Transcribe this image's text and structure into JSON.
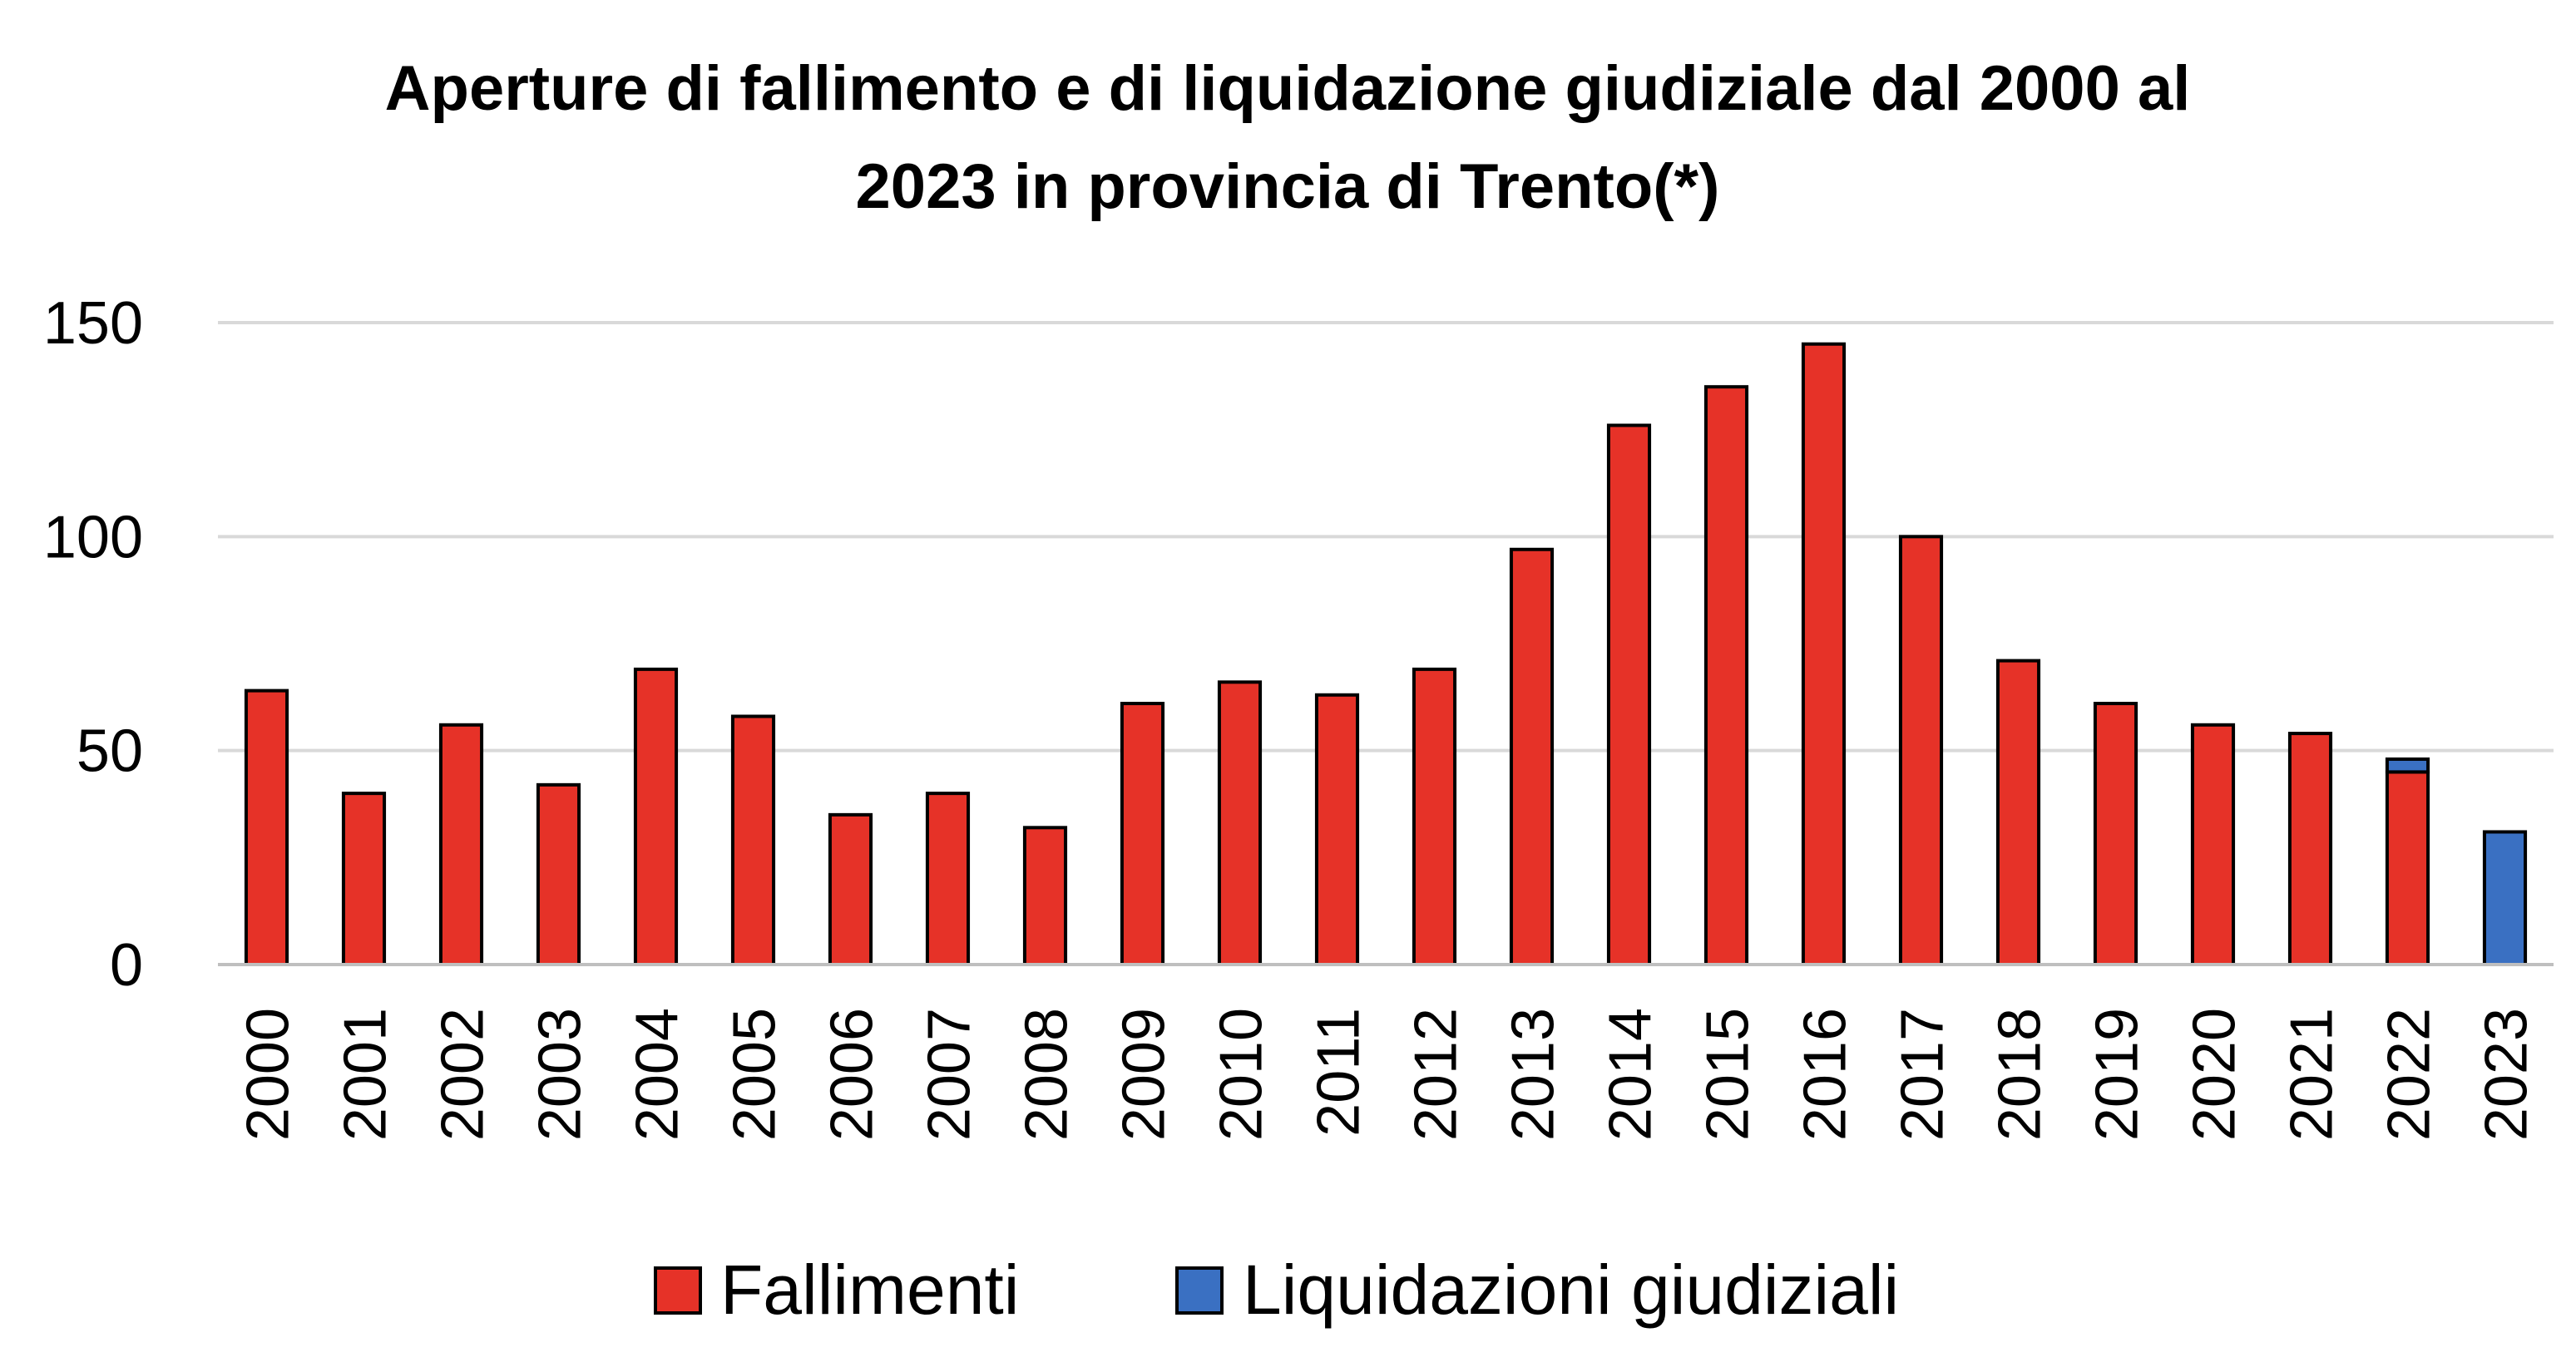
{
  "chart_data": {
    "type": "bar",
    "stacked": true,
    "title": "Aperture di fallimento e di liquidazione giudiziale dal 2000 al 2023 in provincia di Trento(*)",
    "title_lines": [
      "Aperture di fallimento e di liquidazione giudiziale dal 2000 al",
      "2023 in provincia di Trento(*)"
    ],
    "xlabel": "",
    "ylabel": "",
    "categories": [
      "2000",
      "2001",
      "2002",
      "2003",
      "2004",
      "2005",
      "2006",
      "2007",
      "2008",
      "2009",
      "2010",
      "2011",
      "2012",
      "2013",
      "2014",
      "2015",
      "2016",
      "2017",
      "2018",
      "2019",
      "2020",
      "2021",
      "2022",
      "2023"
    ],
    "series": [
      {
        "name": "Fallimenti",
        "color": "#e63228",
        "values": [
          64,
          40,
          56,
          42,
          69,
          58,
          35,
          40,
          32,
          61,
          66,
          63,
          69,
          97,
          126,
          135,
          145,
          100,
          71,
          61,
          56,
          54,
          45,
          0
        ]
      },
      {
        "name": "Liquidazioni giudiziali",
        "color": "#3a70c2",
        "values": [
          0,
          0,
          0,
          0,
          0,
          0,
          0,
          0,
          0,
          0,
          0,
          0,
          0,
          0,
          0,
          0,
          0,
          0,
          0,
          0,
          0,
          0,
          3,
          31
        ]
      }
    ],
    "ylim": [
      0,
      150
    ],
    "yticks": [
      0,
      50,
      100,
      150
    ],
    "grid": true,
    "legend_position": "bottom"
  }
}
